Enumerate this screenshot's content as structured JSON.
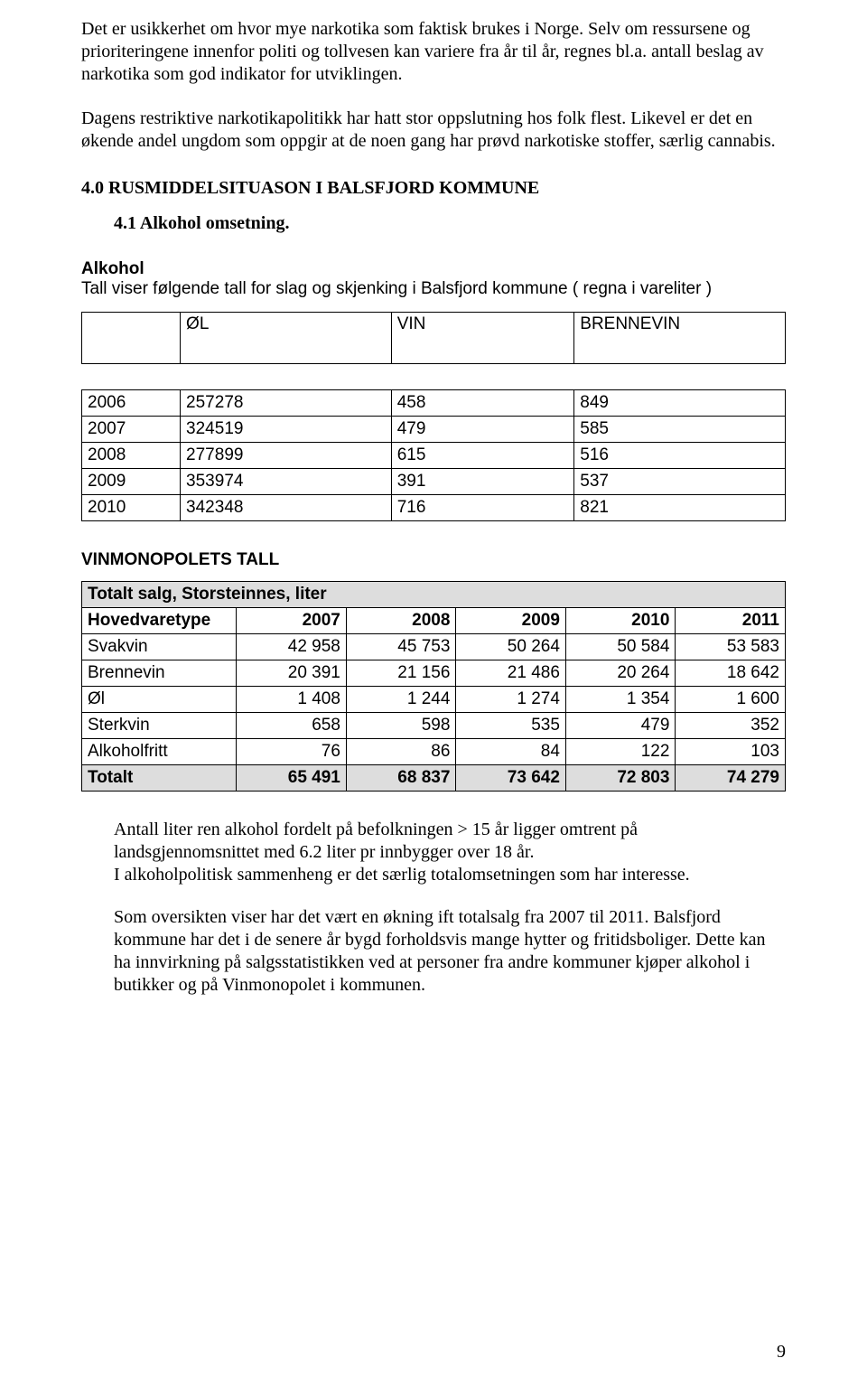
{
  "para1": "Det er usikkerhet om hvor mye narkotika som faktisk brukes i Norge. Selv om ressursene og prioriteringene innenfor politi og tollvesen kan variere fra år til år, regnes bl.a. antall beslag av narkotika som god indikator for utviklingen.",
  "para2": "Dagens restriktive narkotikapolitikk har hatt stor oppslutning hos folk flest. Likevel er det en økende andel ungdom som oppgir at de noen gang har prøvd narkotiske stoffer, særlig cannabis.",
  "heading_section": "4.0 RUSMIDDELSITUASON I BALSFJORD KOMMUNE",
  "heading_sub": "4.1 Alkohol omsetning.",
  "alkohol_label": "Alkohol",
  "alkohol_sub": "Tall viser følgende tall for slag og skjenking i Balsfjord kommune ( regna i vareliter )",
  "table1": {
    "columns": [
      "",
      "ØL",
      "VIN",
      "BRENNEVIN"
    ],
    "col_widths": [
      "14%",
      "30%",
      "26%",
      "30%"
    ],
    "rows": [
      [
        "2006",
        "257278",
        "458",
        "849"
      ],
      [
        "2007",
        "324519",
        "479",
        "585"
      ],
      [
        "2008",
        "277899",
        "615",
        "516"
      ],
      [
        "2009",
        "353974",
        "391",
        "537"
      ],
      [
        "2010",
        "342348",
        "716",
        "821"
      ]
    ]
  },
  "vin_heading": "VINMONOPOLETS TALL",
  "table2": {
    "title": "Totalt salg, Storsteinnes, liter",
    "columns": [
      "Hovedvaretype",
      "2007",
      "2008",
      "2009",
      "2010",
      "2011"
    ],
    "col_widths": [
      "22%",
      "15.6%",
      "15.6%",
      "15.6%",
      "15.6%",
      "15.6%"
    ],
    "rows": [
      [
        "Svakvin",
        "42 958",
        "45 753",
        "50 264",
        "50 584",
        "53 583"
      ],
      [
        "Brennevin",
        "20 391",
        "21 156",
        "21 486",
        "20 264",
        "18 642"
      ],
      [
        "Øl",
        "1 408",
        "1 244",
        "1 274",
        "1 354",
        "1 600"
      ],
      [
        "Sterkvin",
        "658",
        "598",
        "535",
        "479",
        "352"
      ],
      [
        "Alkoholfritt",
        "76",
        "86",
        "84",
        "122",
        "103"
      ]
    ],
    "total_row": [
      "Totalt",
      "65 491",
      "68 837",
      "73 642",
      "72 803",
      "74 279"
    ]
  },
  "para3": "Antall liter ren alkohol fordelt på befolkningen > 15 år ligger omtrent på landsgjennomsnittet med 6.2 liter pr innbygger over 18 år.",
  "para4": "I alkoholpolitisk sammenheng er det særlig totalomsetningen som har interesse.",
  "para5": "Som oversikten viser har det vært en økning ift totalsalg fra 2007 til 2011. Balsfjord kommune har det i de senere år bygd forholdsvis mange hytter og fritidsboliger. Dette kan ha innvirkning på salgsstatistikken ved at personer fra andre kommuner kjøper alkohol i butikker og på Vinmonopolet i kommunen.",
  "page_number": "9"
}
